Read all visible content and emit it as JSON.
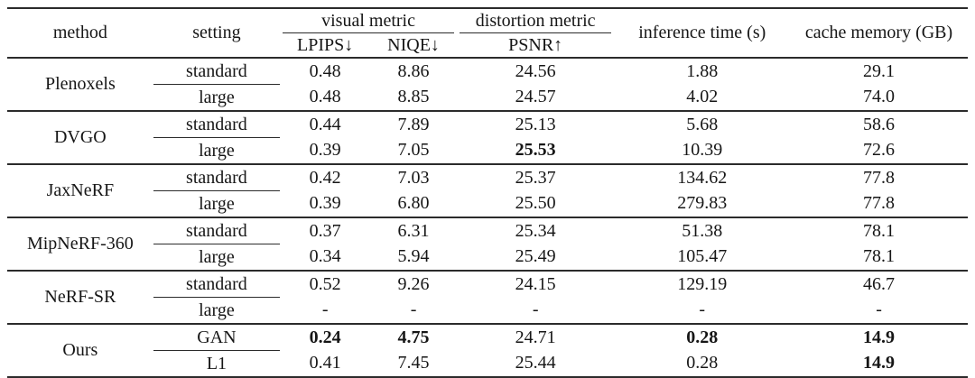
{
  "colors": {
    "text": "#161616",
    "rule": "#2b2b2b",
    "background": "#ffffff"
  },
  "table": {
    "header": {
      "method": "method",
      "setting": "setting",
      "visual_metric": "visual metric",
      "distortion_metric": "distortion metric",
      "lpips": "LPIPS↓",
      "niqe": "NIQE↓",
      "psnr": "PSNR↑",
      "inference_time": "inference time (s)",
      "cache_memory": "cache memory (GB)"
    },
    "groups": [
      {
        "method": "Plenoxels",
        "rows": [
          {
            "setting": "standard",
            "lpips": "0.48",
            "niqe": "8.86",
            "psnr": "24.56",
            "inference_time": "1.88",
            "cache_memory": "29.1",
            "bold": []
          },
          {
            "setting": "large",
            "lpips": "0.48",
            "niqe": "8.85",
            "psnr": "24.57",
            "inference_time": "4.02",
            "cache_memory": "74.0",
            "bold": []
          }
        ]
      },
      {
        "method": "DVGO",
        "rows": [
          {
            "setting": "standard",
            "lpips": "0.44",
            "niqe": "7.89",
            "psnr": "25.13",
            "inference_time": "5.68",
            "cache_memory": "58.6",
            "bold": []
          },
          {
            "setting": "large",
            "lpips": "0.39",
            "niqe": "7.05",
            "psnr": "25.53",
            "inference_time": "10.39",
            "cache_memory": "72.6",
            "bold": [
              "psnr"
            ]
          }
        ]
      },
      {
        "method": "JaxNeRF",
        "rows": [
          {
            "setting": "standard",
            "lpips": "0.42",
            "niqe": "7.03",
            "psnr": "25.37",
            "inference_time": "134.62",
            "cache_memory": "77.8",
            "bold": []
          },
          {
            "setting": "large",
            "lpips": "0.39",
            "niqe": "6.80",
            "psnr": "25.50",
            "inference_time": "279.83",
            "cache_memory": "77.8",
            "bold": []
          }
        ]
      },
      {
        "method": "MipNeRF-360",
        "rows": [
          {
            "setting": "standard",
            "lpips": "0.37",
            "niqe": "6.31",
            "psnr": "25.34",
            "inference_time": "51.38",
            "cache_memory": "78.1",
            "bold": []
          },
          {
            "setting": "large",
            "lpips": "0.34",
            "niqe": "5.94",
            "psnr": "25.49",
            "inference_time": "105.47",
            "cache_memory": "78.1",
            "bold": []
          }
        ]
      },
      {
        "method": "NeRF-SR",
        "rows": [
          {
            "setting": "standard",
            "lpips": "0.52",
            "niqe": "9.26",
            "psnr": "24.15",
            "inference_time": "129.19",
            "cache_memory": "46.7",
            "bold": []
          },
          {
            "setting": "large",
            "lpips": "-",
            "niqe": "-",
            "psnr": "-",
            "inference_time": "-",
            "cache_memory": "-",
            "bold": []
          }
        ]
      },
      {
        "method": "Ours",
        "rows": [
          {
            "setting": "GAN",
            "lpips": "0.24",
            "niqe": "4.75",
            "psnr": "24.71",
            "inference_time": "0.28",
            "cache_memory": "14.9",
            "bold": [
              "lpips",
              "niqe",
              "inference_time",
              "cache_memory"
            ]
          },
          {
            "setting": "L1",
            "lpips": "0.41",
            "niqe": "7.45",
            "psnr": "25.44",
            "inference_time": "0.28",
            "cache_memory": "14.9",
            "bold": [
              "cache_memory"
            ]
          }
        ]
      }
    ]
  }
}
